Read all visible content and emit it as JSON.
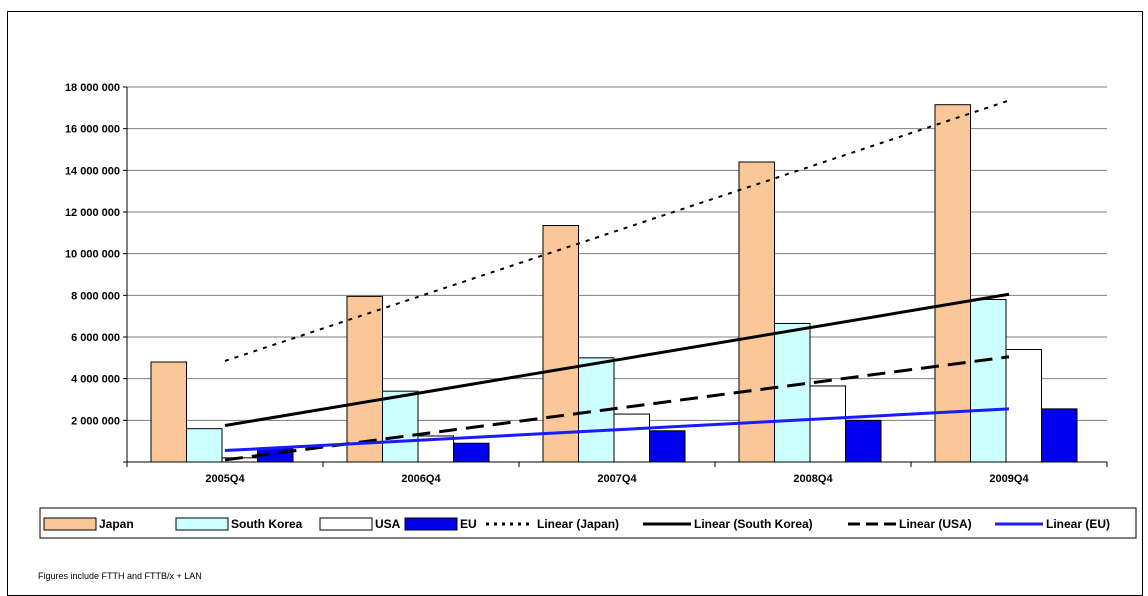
{
  "page": {
    "title": "",
    "footnote": "Figures include FTTH and FTTB/x + LAN"
  },
  "colors": {
    "japan": "#fac898",
    "south_korea": "#ccffff",
    "usa": "#ffffff",
    "eu": "#0000ee",
    "trend_eu": "#1a1aff",
    "gridline": "#7f7f7f",
    "text": "#000000"
  },
  "chart_data": {
    "type": "bar",
    "title": "",
    "xlabel": "",
    "ylabel": "",
    "categories": [
      "2005Q4",
      "2006Q4",
      "2007Q4",
      "2008Q4",
      "2009Q4"
    ],
    "ylim": [
      0,
      18000000
    ],
    "yticks": [
      0,
      2000000,
      4000000,
      6000000,
      8000000,
      10000000,
      12000000,
      14000000,
      16000000,
      18000000
    ],
    "ytick_labels": [
      "",
      "2 000 000",
      "4 000 000",
      "6 000 000",
      "8 000 000",
      "10 000 000",
      "12 000 000",
      "14 000 000",
      "16 000 000",
      "18 000 000"
    ],
    "grid": true,
    "legend_position": "bottom",
    "series": [
      {
        "name": "Japan",
        "values": [
          4800000,
          7950000,
          11350000,
          14400000,
          17150000
        ]
      },
      {
        "name": "South Korea",
        "values": [
          1600000,
          3400000,
          5000000,
          6650000,
          7800000
        ]
      },
      {
        "name": "USA",
        "values": [
          200000,
          1250000,
          2300000,
          3650000,
          5400000
        ]
      },
      {
        "name": "EU",
        "values": [
          650000,
          900000,
          1500000,
          2000000,
          2550000
        ]
      }
    ],
    "trendlines": [
      {
        "name": "Linear (Japan)",
        "series": "Japan",
        "style": "dotted",
        "start": 4850000,
        "end": 17350000
      },
      {
        "name": "Linear (South Korea)",
        "series": "South Korea",
        "style": "solid",
        "start": 1750000,
        "end": 8050000
      },
      {
        "name": "Linear (USA)",
        "series": "USA",
        "style": "dashed",
        "start": 100000,
        "end": 5050000
      },
      {
        "name": "Linear (EU)",
        "series": "EU",
        "style": "solid-blue",
        "start": 550000,
        "end": 2550000
      }
    ],
    "legend": [
      "Japan",
      "South Korea",
      "USA",
      "EU",
      "Linear (Japan)",
      "Linear (South Korea)",
      "Linear (USA)",
      "Linear (EU)"
    ]
  }
}
